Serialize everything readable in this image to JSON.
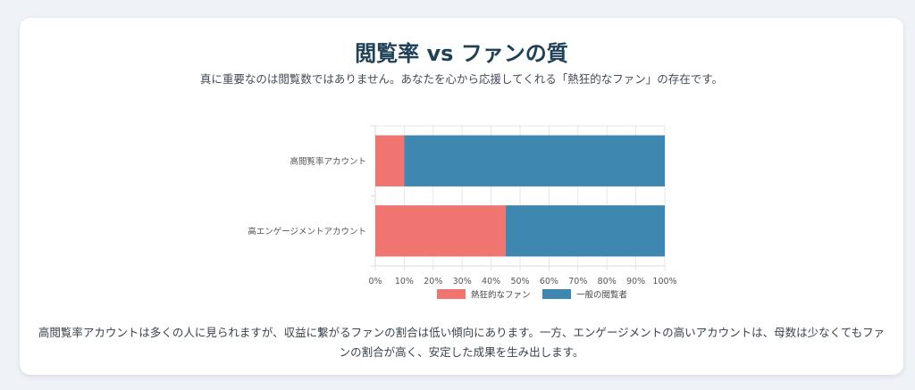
{
  "header": {
    "title": "閲覧率 vs ファンの質",
    "subtitle": "真に重要なのは閲覧数ではありません。あなたを心から応援してくれる「熱狂的なファン」の存在です。"
  },
  "footer": {
    "text": "高閲覧率アカウントは多くの人に見られますが、収益に繋がるファンの割合は低い傾向にあります。一方、エンゲージメントの高いアカウントは、母数は少なくてもファンの割合が高く、安定した成果を生み出します。"
  },
  "chart_data": {
    "type": "bar",
    "orientation": "horizontal",
    "stacked": true,
    "categories": [
      "高閲覧率アカウント",
      "高エンゲージメントアカウント"
    ],
    "series": [
      {
        "name": "熱狂的なファン",
        "values": [
          10,
          45
        ],
        "color": "#f07470"
      },
      {
        "name": "一般の閲覧者",
        "values": [
          90,
          55
        ],
        "color": "#3d87b0"
      }
    ],
    "xlim": [
      0,
      100
    ],
    "xticks": [
      "0%",
      "10%",
      "20%",
      "30%",
      "40%",
      "50%",
      "60%",
      "70%",
      "80%",
      "90%",
      "100%"
    ],
    "grid": true,
    "legend": "bottom"
  }
}
